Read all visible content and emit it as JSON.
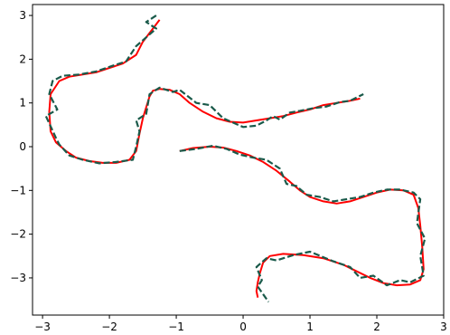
{
  "chart_data": {
    "type": "line",
    "title": "",
    "xlabel": "",
    "ylabel": "",
    "xlim": [
      -3.15,
      3.0
    ],
    "ylim": [
      -3.85,
      3.25
    ],
    "xticks": [
      -3,
      -2,
      -1,
      0,
      1,
      2,
      3
    ],
    "xtick_labels": [
      "−3",
      "−2",
      "−1",
      "0",
      "1",
      "2",
      "3"
    ],
    "yticks": [
      3,
      2,
      1,
      0,
      -1,
      -2,
      -3
    ],
    "ytick_labels": [
      "3",
      "2",
      "1",
      "0",
      "−1",
      "−2",
      "−3"
    ],
    "grid": false,
    "legend": false,
    "series": [
      {
        "color": "#ff0000",
        "style": "solid",
        "x": [
          -1.25,
          -1.35,
          -1.5,
          -1.6,
          -1.8,
          -2.0,
          -2.2,
          -2.4,
          -2.6,
          -2.75,
          -2.88,
          -2.9,
          -2.88,
          -2.8,
          -2.65,
          -2.5,
          -2.3,
          -2.1,
          -1.9,
          -1.7,
          -1.6,
          -1.55,
          -1.5,
          -1.45,
          -1.4,
          -1.35,
          -1.25,
          -1.1,
          -0.95,
          -0.8,
          -0.6,
          -0.4,
          -0.2,
          0.0,
          0.2,
          0.4,
          0.6,
          0.8,
          1.0,
          1.2,
          1.4,
          1.6,
          1.75
        ],
        "y": [
          2.9,
          2.7,
          2.4,
          2.1,
          1.9,
          1.8,
          1.7,
          1.65,
          1.6,
          1.5,
          1.2,
          0.8,
          0.35,
          0.1,
          -0.1,
          -0.25,
          -0.33,
          -0.37,
          -0.37,
          -0.3,
          -0.1,
          0.3,
          0.65,
          0.9,
          1.15,
          1.28,
          1.32,
          1.3,
          1.2,
          1.0,
          0.8,
          0.65,
          0.57,
          0.55,
          0.6,
          0.65,
          0.7,
          0.78,
          0.85,
          0.95,
          1.0,
          1.05,
          1.1
        ]
      },
      {
        "color": "#ff0000",
        "style": "solid",
        "x": [
          -0.95,
          -0.75,
          -0.5,
          -0.3,
          -0.1,
          0.1,
          0.3,
          0.5,
          0.7,
          0.85,
          1.0,
          1.2,
          1.4,
          1.6,
          1.8,
          2.0,
          2.2,
          2.4,
          2.55,
          2.62,
          2.65,
          2.68,
          2.7,
          2.65,
          2.5,
          2.3,
          2.1,
          1.9,
          1.7,
          1.5,
          1.2,
          0.9,
          0.6,
          0.4,
          0.3,
          0.25,
          0.22,
          0.2,
          0.22
        ],
        "y": [
          -0.1,
          -0.03,
          0.0,
          -0.02,
          -0.1,
          -0.2,
          -0.35,
          -0.55,
          -0.8,
          -1.0,
          -1.15,
          -1.25,
          -1.3,
          -1.25,
          -1.15,
          -1.05,
          -0.98,
          -1.0,
          -1.1,
          -1.4,
          -1.8,
          -2.3,
          -2.8,
          -3.05,
          -3.15,
          -3.17,
          -3.12,
          -3.0,
          -2.85,
          -2.7,
          -2.55,
          -2.48,
          -2.45,
          -2.5,
          -2.65,
          -2.9,
          -3.1,
          -3.3,
          -3.45
        ]
      },
      {
        "color": "#1a5a4a",
        "style": "dashed",
        "x": [
          -1.3,
          -1.45,
          -1.3,
          -1.6,
          -1.75,
          -1.95,
          -2.2,
          -2.45,
          -2.7,
          -2.85,
          -2.9,
          -2.78,
          -2.95,
          -2.8,
          -2.75,
          -2.6,
          -2.4,
          -2.15,
          -1.9,
          -1.65,
          -1.6,
          -1.55,
          -1.6,
          -1.45,
          -1.4,
          -1.25,
          -1.05,
          -0.95,
          -0.7,
          -0.5,
          -0.3,
          0.0,
          0.2,
          0.35,
          0.45,
          0.55,
          0.7,
          0.85,
          1.05,
          1.25,
          1.45,
          1.6,
          1.8
        ],
        "y": [
          3.0,
          2.85,
          2.7,
          2.3,
          1.95,
          1.85,
          1.72,
          1.65,
          1.62,
          1.5,
          1.2,
          0.85,
          0.7,
          0.2,
          0.05,
          -0.2,
          -0.3,
          -0.38,
          -0.35,
          -0.3,
          0.0,
          0.35,
          0.6,
          0.75,
          1.2,
          1.35,
          1.25,
          1.3,
          1.0,
          0.95,
          0.65,
          0.45,
          0.48,
          0.6,
          0.7,
          0.62,
          0.78,
          0.82,
          0.88,
          0.92,
          1.02,
          1.05,
          1.2
        ]
      },
      {
        "color": "#1a5a4a",
        "style": "dashed",
        "x": [
          -0.95,
          -0.7,
          -0.45,
          -0.25,
          -0.05,
          0.15,
          0.35,
          0.55,
          0.65,
          0.8,
          0.95,
          1.15,
          1.35,
          1.55,
          1.75,
          1.95,
          2.15,
          2.35,
          2.55,
          2.65,
          2.6,
          2.72,
          2.65,
          2.7,
          2.5,
          2.35,
          2.15,
          1.95,
          1.75,
          1.6,
          1.35,
          1.0,
          0.75,
          0.5,
          0.35,
          0.2,
          0.28,
          0.22,
          0.38
        ],
        "y": [
          -0.1,
          -0.05,
          0.02,
          -0.05,
          -0.18,
          -0.25,
          -0.3,
          -0.5,
          -0.85,
          -0.9,
          -1.1,
          -1.15,
          -1.25,
          -1.2,
          -1.15,
          -1.05,
          -0.98,
          -0.98,
          -1.05,
          -1.2,
          -1.75,
          -2.1,
          -2.5,
          -2.95,
          -3.1,
          -3.05,
          -3.17,
          -2.95,
          -3.0,
          -2.75,
          -2.62,
          -2.4,
          -2.48,
          -2.6,
          -2.55,
          -2.75,
          -3.05,
          -3.2,
          -3.55
        ]
      }
    ]
  }
}
